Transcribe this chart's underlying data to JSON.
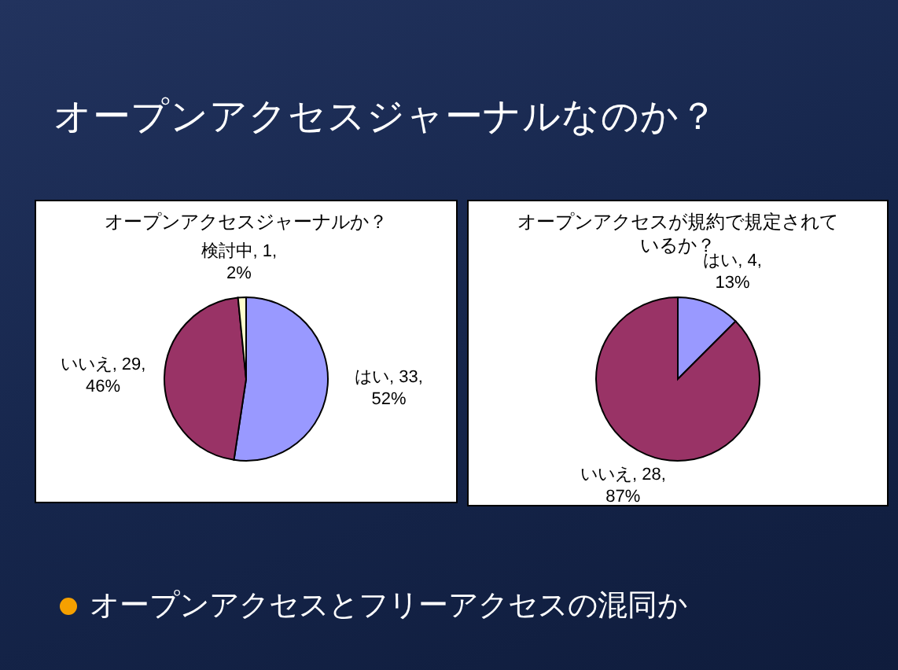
{
  "chart_data": [
    {
      "type": "other",
      "title": "オープンアクセスジャーナルなのか？",
      "annotations": [
        "オープンアクセスとフリーアクセスの混同か"
      ]
    },
    {
      "type": "pie",
      "title": "オープンアクセスジャーナルか？",
      "categories": [
        "はい",
        "いいえ",
        "検討中"
      ],
      "values": [
        33,
        29,
        1
      ],
      "colors": [
        "#9999ff",
        "#993366",
        "#ffffcc"
      ],
      "value_labels": [
        ", 33, 52%",
        ", 29, 46%",
        ", 1, 2%"
      ]
    },
    {
      "type": "pie",
      "title": "オープンアクセスが規約で規定されているか？",
      "categories": [
        "はい",
        "いいえ"
      ],
      "values": [
        4,
        28
      ],
      "colors": [
        "#9999ff",
        "#993366"
      ],
      "value_labels": [
        ", 4, 13%",
        ", 28, 87%"
      ]
    }
  ]
}
